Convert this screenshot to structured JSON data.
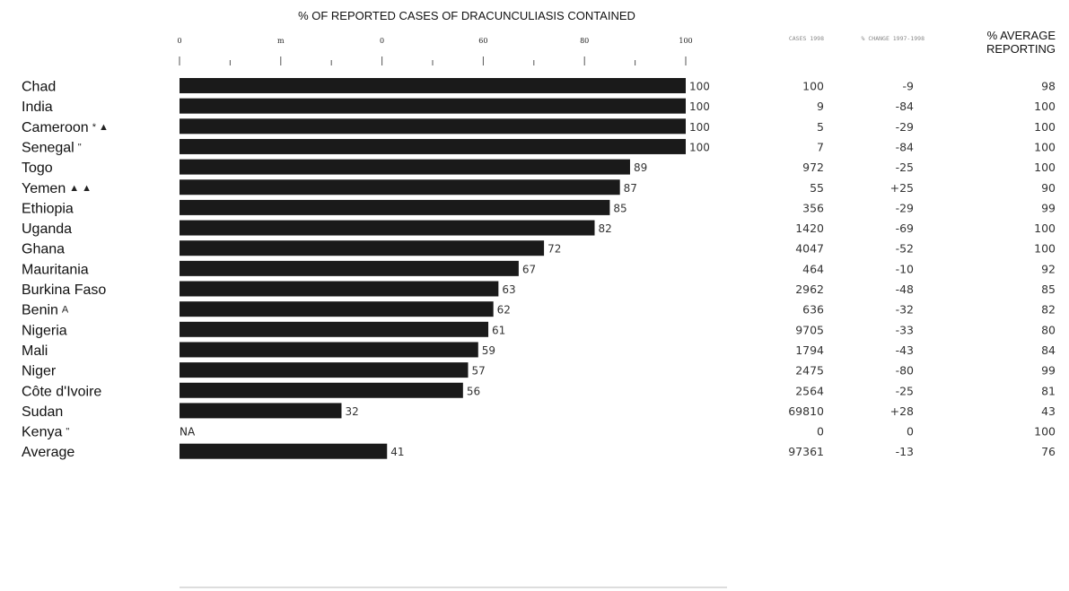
{
  "chart_data": {
    "type": "bar",
    "title": "% OF REPORTED CASES OF DRACUNCULIASIS CONTAINED",
    "xlim": [
      0,
      100
    ],
    "x_tick_labels": [
      "0",
      "m",
      "0",
      "60",
      "80",
      "100"
    ],
    "categories": [
      "Chad",
      "India",
      "Cameroon",
      "Senegal",
      "Togo",
      "Yemen",
      "Ethiopia",
      "Uganda",
      "Ghana",
      "Mauritania",
      "Burkina Faso",
      "Benin",
      "Nigeria",
      "Mali",
      "Niger",
      "Côte d'Ivoire",
      "Sudan",
      "Kenya",
      "Average"
    ],
    "category_marks": [
      "",
      "",
      "* ▲",
      "\"",
      "",
      "▲ ▲",
      "",
      "",
      "",
      "",
      "",
      "A",
      "",
      "",
      "",
      "",
      "",
      "\"",
      ""
    ],
    "values": [
      100,
      100,
      100,
      100,
      89,
      87,
      85,
      82,
      72,
      67,
      63,
      62,
      61,
      59,
      57,
      56,
      32,
      null,
      41
    ],
    "value_labels": [
      "100",
      "100",
      "100",
      "100",
      "89",
      "87",
      "85",
      "82",
      "72",
      "67",
      "63",
      "62",
      "61",
      "59",
      "57",
      "56",
      "32",
      "NA",
      "41"
    ],
    "table": {
      "headers": {
        "cases": "CASES 1998",
        "change": "% CHANGE 1997-1998",
        "reporting_line1": "% AVERAGE",
        "reporting_line2": "REPORTING"
      },
      "cases": [
        "100",
        "9",
        "5",
        "7",
        "972",
        "55",
        "356",
        "1420",
        "4047",
        "464",
        "2962",
        "636",
        "9705",
        "1794",
        "2475",
        "2564",
        "69810",
        "0",
        "97361"
      ],
      "change": [
        "-9",
        "-84",
        "-29",
        "-84",
        "-25",
        "+25",
        "-29",
        "-69",
        "-52",
        "-10",
        "-48",
        "-32",
        "-33",
        "-43",
        "-80",
        "-25",
        "+28",
        "0",
        "-13"
      ],
      "reporting": [
        "98",
        "100",
        "100",
        "100",
        "100",
        "90",
        "99",
        "100",
        "100",
        "92",
        "85",
        "82",
        "80",
        "84",
        "99",
        "81",
        "43",
        "100",
        "76"
      ]
    },
    "bar_color": "#1a1a1a",
    "grid": false
  }
}
